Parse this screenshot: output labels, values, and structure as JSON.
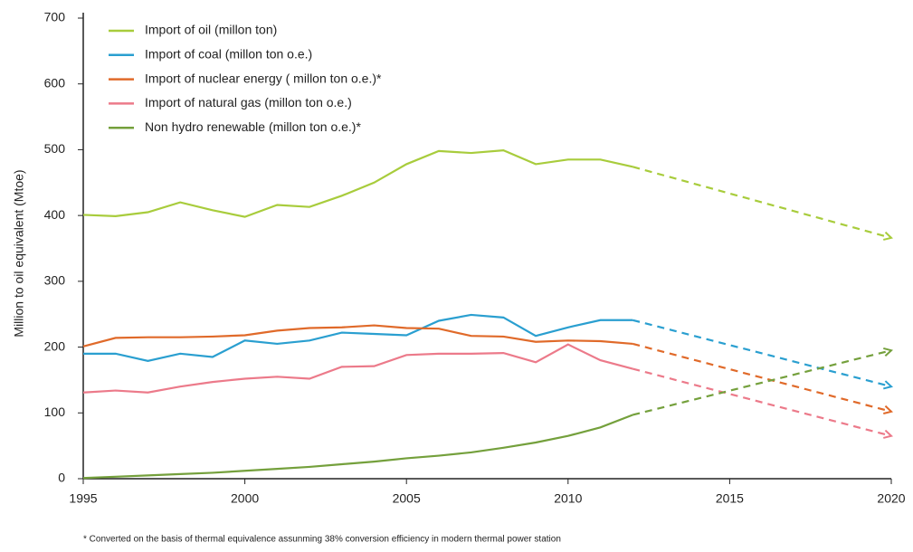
{
  "chart_data": {
    "type": "line",
    "y_label": "Million to oil equivalent (Mtoe)",
    "footnote": "* Converted on the basis of thermal equivalence assunming 38% conversion efficiency in modern thermal power station",
    "x": [
      1995,
      1996,
      1997,
      1998,
      1999,
      2000,
      2001,
      2002,
      2003,
      2004,
      2005,
      2006,
      2007,
      2008,
      2009,
      2010,
      2011,
      2012,
      2020
    ],
    "dashed_from": 2012,
    "series": [
      {
        "name": "Import of oil (millon ton)",
        "color": "#a8cc3c",
        "values": [
          401,
          399,
          405,
          420,
          408,
          398,
          416,
          413,
          430,
          450,
          478,
          498,
          495,
          499,
          478,
          485,
          485,
          474,
          366
        ]
      },
      {
        "name": "Import of coal (millon ton o.e.)",
        "color": "#2a9fd0",
        "values": [
          190,
          190,
          179,
          190,
          185,
          210,
          205,
          210,
          222,
          220,
          218,
          240,
          249,
          245,
          217,
          230,
          241,
          241,
          140
        ]
      },
      {
        "name": "Import of nuclear energy ( millon ton o.e.)*",
        "color": "#e06a2a",
        "values": [
          201,
          214,
          215,
          215,
          216,
          218,
          225,
          229,
          230,
          233,
          229,
          228,
          217,
          216,
          208,
          210,
          209,
          205,
          102
        ]
      },
      {
        "name": "Import of natural gas (millon ton o.e.)",
        "color": "#ec7a8a",
        "values": [
          131,
          134,
          131,
          140,
          147,
          152,
          155,
          152,
          170,
          171,
          188,
          190,
          190,
          191,
          177,
          204,
          180,
          167,
          65
        ]
      },
      {
        "name": "Non hydro renewable (millon ton o.e.)*",
        "color": "#74a03c",
        "values": [
          1,
          3,
          5,
          7,
          9,
          12,
          15,
          18,
          22,
          26,
          31,
          35,
          40,
          47,
          55,
          65,
          78,
          97,
          195
        ]
      }
    ],
    "xlim": [
      1995,
      2020
    ],
    "xticks": [
      1995,
      2000,
      2005,
      2010,
      2015,
      2020
    ],
    "ylim": [
      0,
      700
    ],
    "yticks": [
      0,
      100,
      200,
      300,
      400,
      500,
      600,
      700
    ]
  }
}
